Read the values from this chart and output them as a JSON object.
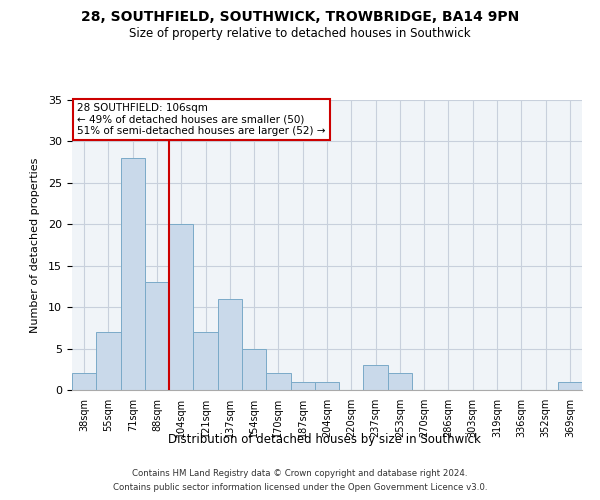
{
  "title": "28, SOUTHFIELD, SOUTHWICK, TROWBRIDGE, BA14 9PN",
  "subtitle": "Size of property relative to detached houses in Southwick",
  "xlabel": "Distribution of detached houses by size in Southwick",
  "ylabel": "Number of detached properties",
  "bin_labels": [
    "38sqm",
    "55sqm",
    "71sqm",
    "88sqm",
    "104sqm",
    "121sqm",
    "137sqm",
    "154sqm",
    "170sqm",
    "187sqm",
    "204sqm",
    "220sqm",
    "237sqm",
    "253sqm",
    "270sqm",
    "286sqm",
    "303sqm",
    "319sqm",
    "336sqm",
    "352sqm",
    "369sqm"
  ],
  "bar_values": [
    2,
    7,
    28,
    13,
    20,
    7,
    11,
    5,
    2,
    1,
    1,
    0,
    3,
    2,
    0,
    0,
    0,
    0,
    0,
    0,
    1
  ],
  "bar_color": "#c9d9ea",
  "bar_edge_color": "#7aaac8",
  "vline_x_index": 4,
  "vline_color": "#cc0000",
  "ylim": [
    0,
    35
  ],
  "yticks": [
    0,
    5,
    10,
    15,
    20,
    25,
    30,
    35
  ],
  "annotation_title": "28 SOUTHFIELD: 106sqm",
  "annotation_line1": "← 49% of detached houses are smaller (50)",
  "annotation_line2": "51% of semi-detached houses are larger (52) →",
  "annotation_box_color": "#ffffff",
  "annotation_box_edge": "#cc0000",
  "footer1": "Contains HM Land Registry data © Crown copyright and database right 2024.",
  "footer2": "Contains public sector information licensed under the Open Government Licence v3.0.",
  "bg_color": "#f0f4f8"
}
